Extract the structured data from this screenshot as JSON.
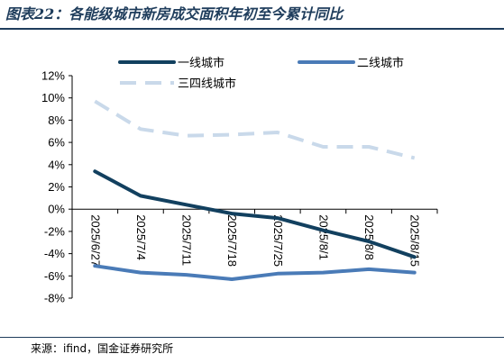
{
  "header": {
    "title": "图表22：各能级城市新房成交面积年初至今累计同比"
  },
  "footer": {
    "source": "来源：ifind，国金证券研究所"
  },
  "colors": {
    "tier1": "#12405f",
    "tier2": "#4a7bb7",
    "tier34": "#c9d9ea",
    "title": "#1f3d5c"
  },
  "chart_data": {
    "type": "line",
    "categories": [
      "2025/6/27",
      "2025/7/4",
      "2025/7/11",
      "2025/7/18",
      "2025/7/25",
      "2025/8/1",
      "2025/8/8",
      "2025/8/15"
    ],
    "series": [
      {
        "name": "一线城市",
        "values": [
          3.4,
          1.2,
          0.4,
          -0.4,
          -0.8,
          -1.9,
          -2.9,
          -4.3
        ],
        "style": "solid"
      },
      {
        "name": "二线城市",
        "values": [
          -5.1,
          -5.7,
          -5.9,
          -6.3,
          -5.8,
          -5.7,
          -5.4,
          -5.7
        ],
        "style": "solid"
      },
      {
        "name": "三四线城市",
        "values": [
          9.7,
          7.2,
          6.6,
          6.7,
          6.9,
          5.6,
          5.6,
          4.6
        ],
        "style": "dashed"
      }
    ],
    "ylim": [
      -8,
      12
    ],
    "yticks": [
      "12%",
      "10%",
      "8%",
      "6%",
      "4%",
      "2%",
      "0%",
      "-2%",
      "-4%",
      "-6%",
      "-8%"
    ],
    "legend_position": "top",
    "grid": false
  }
}
